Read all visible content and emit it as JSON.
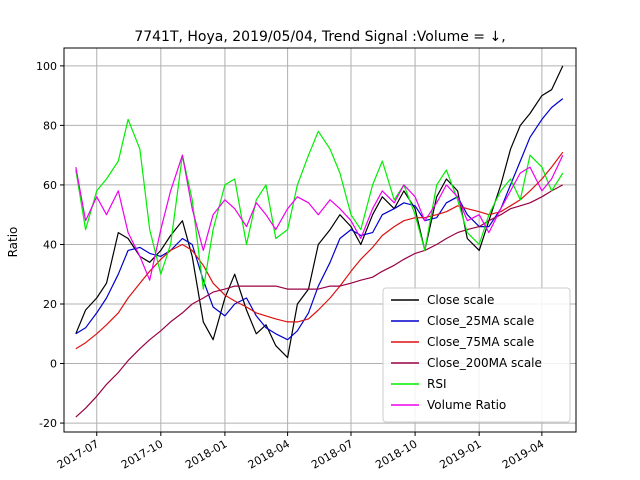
{
  "chart_data": {
    "type": "line",
    "title": "7741T, Hoya, 2019/05/04, Trend Signal :Volume = ↓,",
    "xlabel": "",
    "ylabel": "Ratio",
    "ylim": [
      -23,
      106
    ],
    "xlim": [
      "2017-05-15",
      "2019-05-20"
    ],
    "yticks": [
      -20,
      0,
      20,
      40,
      60,
      80,
      100
    ],
    "xticks": [
      "2017-07",
      "2017-10",
      "2018-01",
      "2018-04",
      "2018-07",
      "2018-10",
      "2019-01",
      "2019-04"
    ],
    "grid": true,
    "legend_position": "lower-right",
    "series": [
      {
        "name": "Close scale",
        "color": "#000000",
        "points": [
          [
            "2017-06-01",
            10
          ],
          [
            "2017-06-15",
            18
          ],
          [
            "2017-07-01",
            22
          ],
          [
            "2017-07-15",
            27
          ],
          [
            "2017-08-01",
            44
          ],
          [
            "2017-08-15",
            42
          ],
          [
            "2017-09-01",
            36
          ],
          [
            "2017-09-15",
            34
          ],
          [
            "2017-10-01",
            38
          ],
          [
            "2017-10-15",
            43
          ],
          [
            "2017-11-01",
            48
          ],
          [
            "2017-11-15",
            36
          ],
          [
            "2017-12-01",
            14
          ],
          [
            "2017-12-15",
            8
          ],
          [
            "2018-01-01",
            22
          ],
          [
            "2018-01-15",
            30
          ],
          [
            "2018-02-01",
            18
          ],
          [
            "2018-02-15",
            10
          ],
          [
            "2018-03-01",
            13
          ],
          [
            "2018-03-15",
            6
          ],
          [
            "2018-04-01",
            2
          ],
          [
            "2018-04-15",
            20
          ],
          [
            "2018-05-01",
            25
          ],
          [
            "2018-05-15",
            40
          ],
          [
            "2018-06-01",
            45
          ],
          [
            "2018-06-15",
            50
          ],
          [
            "2018-07-01",
            46
          ],
          [
            "2018-07-15",
            40
          ],
          [
            "2018-08-01",
            50
          ],
          [
            "2018-08-15",
            56
          ],
          [
            "2018-09-01",
            52
          ],
          [
            "2018-09-15",
            58
          ],
          [
            "2018-10-01",
            52
          ],
          [
            "2018-10-15",
            38
          ],
          [
            "2018-11-01",
            56
          ],
          [
            "2018-11-15",
            62
          ],
          [
            "2018-12-01",
            58
          ],
          [
            "2018-12-15",
            42
          ],
          [
            "2019-01-01",
            38
          ],
          [
            "2019-01-15",
            48
          ],
          [
            "2019-02-01",
            60
          ],
          [
            "2019-02-15",
            72
          ],
          [
            "2019-03-01",
            80
          ],
          [
            "2019-03-15",
            84
          ],
          [
            "2019-04-01",
            90
          ],
          [
            "2019-04-15",
            92
          ],
          [
            "2019-05-01",
            100
          ]
        ]
      },
      {
        "name": "Close_25MA scale",
        "color": "#0000cc",
        "points": [
          [
            "2017-06-01",
            10
          ],
          [
            "2017-06-15",
            12
          ],
          [
            "2017-07-01",
            17
          ],
          [
            "2017-07-15",
            22
          ],
          [
            "2017-08-01",
            30
          ],
          [
            "2017-08-15",
            38
          ],
          [
            "2017-09-01",
            39
          ],
          [
            "2017-09-15",
            37
          ],
          [
            "2017-10-01",
            36
          ],
          [
            "2017-10-15",
            38
          ],
          [
            "2017-11-01",
            42
          ],
          [
            "2017-11-15",
            40
          ],
          [
            "2017-12-01",
            28
          ],
          [
            "2017-12-15",
            19
          ],
          [
            "2018-01-01",
            16
          ],
          [
            "2018-01-15",
            20
          ],
          [
            "2018-02-01",
            22
          ],
          [
            "2018-02-15",
            16
          ],
          [
            "2018-03-01",
            12
          ],
          [
            "2018-03-15",
            10
          ],
          [
            "2018-04-01",
            8
          ],
          [
            "2018-04-15",
            11
          ],
          [
            "2018-05-01",
            17
          ],
          [
            "2018-05-15",
            26
          ],
          [
            "2018-06-01",
            34
          ],
          [
            "2018-06-15",
            42
          ],
          [
            "2018-07-01",
            45
          ],
          [
            "2018-07-15",
            43
          ],
          [
            "2018-08-01",
            44
          ],
          [
            "2018-08-15",
            50
          ],
          [
            "2018-09-01",
            52
          ],
          [
            "2018-09-15",
            54
          ],
          [
            "2018-10-01",
            53
          ],
          [
            "2018-10-15",
            48
          ],
          [
            "2018-11-01",
            49
          ],
          [
            "2018-11-15",
            54
          ],
          [
            "2018-12-01",
            56
          ],
          [
            "2018-12-15",
            50
          ],
          [
            "2019-01-01",
            46
          ],
          [
            "2019-01-15",
            46
          ],
          [
            "2019-02-01",
            52
          ],
          [
            "2019-02-15",
            60
          ],
          [
            "2019-03-01",
            68
          ],
          [
            "2019-03-15",
            76
          ],
          [
            "2019-04-01",
            82
          ],
          [
            "2019-04-15",
            86
          ],
          [
            "2019-05-01",
            89
          ]
        ]
      },
      {
        "name": "Close_75MA scale",
        "color": "#dd1111",
        "points": [
          [
            "2017-06-01",
            5
          ],
          [
            "2017-06-15",
            7
          ],
          [
            "2017-07-01",
            10
          ],
          [
            "2017-07-15",
            13
          ],
          [
            "2017-08-01",
            17
          ],
          [
            "2017-08-15",
            22
          ],
          [
            "2017-09-01",
            27
          ],
          [
            "2017-09-15",
            31
          ],
          [
            "2017-10-01",
            35
          ],
          [
            "2017-10-15",
            38
          ],
          [
            "2017-11-01",
            40
          ],
          [
            "2017-11-15",
            38
          ],
          [
            "2017-12-01",
            33
          ],
          [
            "2017-12-15",
            27
          ],
          [
            "2018-01-01",
            23
          ],
          [
            "2018-01-15",
            21
          ],
          [
            "2018-02-01",
            19
          ],
          [
            "2018-02-15",
            17
          ],
          [
            "2018-03-01",
            16
          ],
          [
            "2018-03-15",
            15
          ],
          [
            "2018-04-01",
            14
          ],
          [
            "2018-04-15",
            14
          ],
          [
            "2018-05-01",
            15
          ],
          [
            "2018-05-15",
            18
          ],
          [
            "2018-06-01",
            22
          ],
          [
            "2018-06-15",
            26
          ],
          [
            "2018-07-01",
            31
          ],
          [
            "2018-07-15",
            35
          ],
          [
            "2018-08-01",
            39
          ],
          [
            "2018-08-15",
            43
          ],
          [
            "2018-09-01",
            46
          ],
          [
            "2018-09-15",
            48
          ],
          [
            "2018-10-01",
            49
          ],
          [
            "2018-10-15",
            49
          ],
          [
            "2018-11-01",
            50
          ],
          [
            "2018-11-15",
            51
          ],
          [
            "2018-12-01",
            53
          ],
          [
            "2018-12-15",
            52
          ],
          [
            "2019-01-01",
            51
          ],
          [
            "2019-01-15",
            50
          ],
          [
            "2019-02-01",
            51
          ],
          [
            "2019-02-15",
            53
          ],
          [
            "2019-03-01",
            55
          ],
          [
            "2019-03-15",
            58
          ],
          [
            "2019-04-01",
            62
          ],
          [
            "2019-04-15",
            66
          ],
          [
            "2019-05-01",
            71
          ]
        ]
      },
      {
        "name": "Close_200MA scale",
        "color": "#990044",
        "points": [
          [
            "2017-06-01",
            -18
          ],
          [
            "2017-06-15",
            -15
          ],
          [
            "2017-07-01",
            -11
          ],
          [
            "2017-07-15",
            -7
          ],
          [
            "2017-08-01",
            -3
          ],
          [
            "2017-08-15",
            1
          ],
          [
            "2017-09-01",
            5
          ],
          [
            "2017-09-15",
            8
          ],
          [
            "2017-10-01",
            11
          ],
          [
            "2017-10-15",
            14
          ],
          [
            "2017-11-01",
            17
          ],
          [
            "2017-11-15",
            20
          ],
          [
            "2017-12-01",
            22
          ],
          [
            "2017-12-15",
            24
          ],
          [
            "2018-01-01",
            25
          ],
          [
            "2018-01-15",
            26
          ],
          [
            "2018-02-01",
            26
          ],
          [
            "2018-02-15",
            26
          ],
          [
            "2018-03-01",
            26
          ],
          [
            "2018-03-15",
            26
          ],
          [
            "2018-04-01",
            25
          ],
          [
            "2018-04-15",
            25
          ],
          [
            "2018-05-01",
            25
          ],
          [
            "2018-05-15",
            25
          ],
          [
            "2018-06-01",
            26
          ],
          [
            "2018-06-15",
            26
          ],
          [
            "2018-07-01",
            27
          ],
          [
            "2018-07-15",
            28
          ],
          [
            "2018-08-01",
            29
          ],
          [
            "2018-08-15",
            31
          ],
          [
            "2018-09-01",
            33
          ],
          [
            "2018-09-15",
            35
          ],
          [
            "2018-10-01",
            37
          ],
          [
            "2018-10-15",
            38
          ],
          [
            "2018-11-01",
            40
          ],
          [
            "2018-11-15",
            42
          ],
          [
            "2018-12-01",
            44
          ],
          [
            "2018-12-15",
            45
          ],
          [
            "2019-01-01",
            46
          ],
          [
            "2019-01-15",
            48
          ],
          [
            "2019-02-01",
            50
          ],
          [
            "2019-02-15",
            52
          ],
          [
            "2019-03-01",
            53
          ],
          [
            "2019-03-15",
            54
          ],
          [
            "2019-04-01",
            56
          ],
          [
            "2019-04-15",
            58
          ],
          [
            "2019-05-01",
            60
          ]
        ]
      },
      {
        "name": "RSI",
        "color": "#00ee00",
        "points": [
          [
            "2017-06-01",
            65
          ],
          [
            "2017-06-15",
            45
          ],
          [
            "2017-07-01",
            58
          ],
          [
            "2017-07-15",
            62
          ],
          [
            "2017-08-01",
            68
          ],
          [
            "2017-08-15",
            82
          ],
          [
            "2017-09-01",
            72
          ],
          [
            "2017-09-15",
            45
          ],
          [
            "2017-10-01",
            30
          ],
          [
            "2017-10-15",
            40
          ],
          [
            "2017-11-01",
            70
          ],
          [
            "2017-11-15",
            55
          ],
          [
            "2017-12-01",
            25
          ],
          [
            "2017-12-15",
            45
          ],
          [
            "2018-01-01",
            60
          ],
          [
            "2018-01-15",
            62
          ],
          [
            "2018-02-01",
            40
          ],
          [
            "2018-02-15",
            55
          ],
          [
            "2018-03-01",
            60
          ],
          [
            "2018-03-15",
            42
          ],
          [
            "2018-04-01",
            45
          ],
          [
            "2018-04-15",
            60
          ],
          [
            "2018-05-01",
            70
          ],
          [
            "2018-05-15",
            78
          ],
          [
            "2018-06-01",
            72
          ],
          [
            "2018-06-15",
            64
          ],
          [
            "2018-07-01",
            50
          ],
          [
            "2018-07-15",
            45
          ],
          [
            "2018-08-01",
            60
          ],
          [
            "2018-08-15",
            68
          ],
          [
            "2018-09-01",
            55
          ],
          [
            "2018-09-15",
            60
          ],
          [
            "2018-10-01",
            50
          ],
          [
            "2018-10-15",
            38
          ],
          [
            "2018-11-01",
            60
          ],
          [
            "2018-11-15",
            65
          ],
          [
            "2018-12-01",
            55
          ],
          [
            "2018-12-15",
            44
          ],
          [
            "2019-01-01",
            40
          ],
          [
            "2019-01-15",
            50
          ],
          [
            "2019-02-01",
            58
          ],
          [
            "2019-02-15",
            62
          ],
          [
            "2019-03-01",
            55
          ],
          [
            "2019-03-15",
            70
          ],
          [
            "2019-04-01",
            66
          ],
          [
            "2019-04-15",
            58
          ],
          [
            "2019-05-01",
            64
          ]
        ]
      },
      {
        "name": "Volume Ratio",
        "color": "#ee00ee",
        "points": [
          [
            "2017-06-01",
            66
          ],
          [
            "2017-06-15",
            48
          ],
          [
            "2017-07-01",
            56
          ],
          [
            "2017-07-15",
            50
          ],
          [
            "2017-08-01",
            58
          ],
          [
            "2017-08-15",
            44
          ],
          [
            "2017-09-01",
            36
          ],
          [
            "2017-09-15",
            28
          ],
          [
            "2017-10-01",
            45
          ],
          [
            "2017-10-15",
            58
          ],
          [
            "2017-11-01",
            70
          ],
          [
            "2017-11-15",
            52
          ],
          [
            "2017-12-01",
            38
          ],
          [
            "2017-12-15",
            50
          ],
          [
            "2018-01-01",
            55
          ],
          [
            "2018-01-15",
            52
          ],
          [
            "2018-02-01",
            46
          ],
          [
            "2018-02-15",
            54
          ],
          [
            "2018-03-01",
            50
          ],
          [
            "2018-03-15",
            45
          ],
          [
            "2018-04-01",
            52
          ],
          [
            "2018-04-15",
            56
          ],
          [
            "2018-05-01",
            54
          ],
          [
            "2018-05-15",
            50
          ],
          [
            "2018-06-01",
            55
          ],
          [
            "2018-06-15",
            52
          ],
          [
            "2018-07-01",
            48
          ],
          [
            "2018-07-15",
            42
          ],
          [
            "2018-08-01",
            52
          ],
          [
            "2018-08-15",
            58
          ],
          [
            "2018-09-01",
            54
          ],
          [
            "2018-09-15",
            60
          ],
          [
            "2018-10-01",
            56
          ],
          [
            "2018-10-15",
            48
          ],
          [
            "2018-11-01",
            54
          ],
          [
            "2018-11-15",
            60
          ],
          [
            "2018-12-01",
            56
          ],
          [
            "2018-12-15",
            48
          ],
          [
            "2019-01-01",
            50
          ],
          [
            "2019-01-15",
            44
          ],
          [
            "2019-02-01",
            52
          ],
          [
            "2019-02-15",
            58
          ],
          [
            "2019-03-01",
            64
          ],
          [
            "2019-03-15",
            66
          ],
          [
            "2019-04-01",
            58
          ],
          [
            "2019-04-15",
            62
          ],
          [
            "2019-05-01",
            70
          ]
        ]
      }
    ]
  }
}
